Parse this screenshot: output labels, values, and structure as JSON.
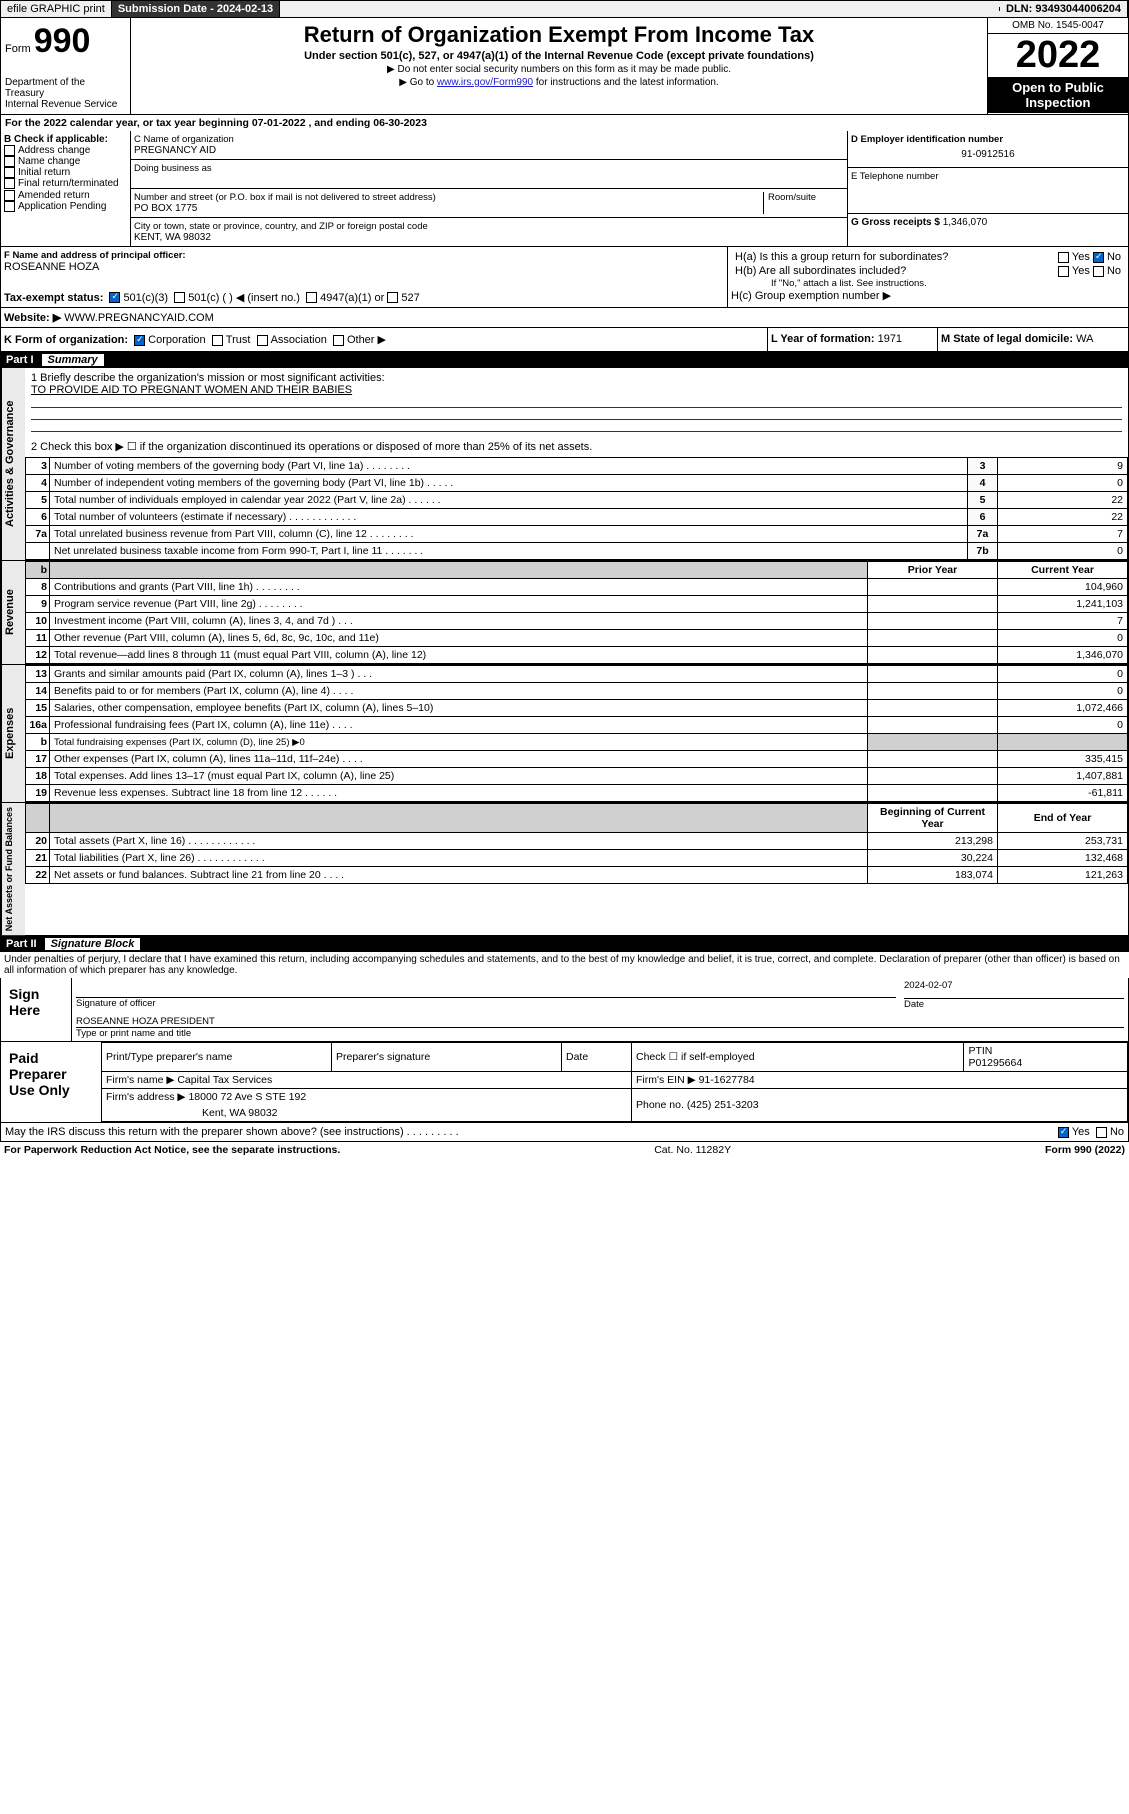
{
  "topbar": {
    "efile_label": "efile GRAPHIC print",
    "submission_label": "Submission Date - 2024-02-13",
    "dln_label": "DLN: 93493044006204"
  },
  "header": {
    "form_label": "Form",
    "form_number": "990",
    "dept": "Department of the Treasury",
    "irs": "Internal Revenue Service",
    "title": "Return of Organization Exempt From Income Tax",
    "subtitle": "Under section 501(c), 527, or 4947(a)(1) of the Internal Revenue Code (except private foundations)",
    "note1": "▶ Do not enter social security numbers on this form as it may be made public.",
    "note2_pre": "▶ Go to ",
    "note2_link": "www.irs.gov/Form990",
    "note2_post": " for instructions and the latest information.",
    "omb": "OMB No. 1545-0047",
    "year": "2022",
    "inspection": "Open to Public Inspection"
  },
  "lineA": "For the 2022 calendar year, or tax year beginning 07-01-2022   , and ending 06-30-2023",
  "boxB": {
    "label": "B Check if applicable:",
    "items": [
      "Address change",
      "Name change",
      "Initial return",
      "Final return/terminated",
      "Amended return",
      "Application Pending"
    ]
  },
  "boxC": {
    "label_name": "C Name of organization",
    "name": "PREGNANCY AID",
    "dba_label": "Doing business as",
    "addr_label": "Number and street (or P.O. box if mail is not delivered to street address)",
    "room_label": "Room/suite",
    "addr": "PO BOX 1775",
    "city_label": "City or town, state or province, country, and ZIP or foreign postal code",
    "city": "KENT, WA  98032"
  },
  "boxD": {
    "label": "D Employer identification number",
    "value": "91-0912516"
  },
  "boxE": {
    "label": "E Telephone number"
  },
  "boxG": {
    "label": "G Gross receipts $",
    "value": "1,346,070"
  },
  "boxF": {
    "label": "F  Name and address of principal officer:",
    "value": "ROSEANNE HOZA"
  },
  "boxH": {
    "ha": "H(a)  Is this a group return for subordinates?",
    "hb": "H(b)  Are all subordinates included?",
    "hb_note": "If \"No,\" attach a list. See instructions.",
    "hc": "H(c)  Group exemption number ▶",
    "yes": "Yes",
    "no": "No"
  },
  "boxI": {
    "label": "Tax-exempt status:",
    "opts": [
      "501(c)(3)",
      "501(c) (  ) ◀ (insert no.)",
      "4947(a)(1) or",
      "527"
    ]
  },
  "boxJ": {
    "label": "Website: ▶",
    "value": "WWW.PREGNANCYAID.COM"
  },
  "boxK": {
    "label": "K Form of organization:",
    "opts": [
      "Corporation",
      "Trust",
      "Association",
      "Other ▶"
    ]
  },
  "boxL": {
    "label": "L Year of formation:",
    "value": "1971"
  },
  "boxM": {
    "label": "M State of legal domicile:",
    "value": "WA"
  },
  "part1": {
    "num": "Part I",
    "title": "Summary"
  },
  "summary": {
    "line1_label": "1  Briefly describe the organization's mission or most significant activities:",
    "line1_text": "TO PROVIDE AID TO PREGNANT WOMEN AND THEIR BABIES",
    "line2": "2   Check this box ▶ ☐  if the organization discontinued its operations or disposed of more than 25% of its net assets.",
    "rows_gov": [
      {
        "n": "3",
        "label": "Number of voting members of the governing body (Part VI, line 1a)   .     .     .     .     .     .     .     .",
        "col": "3",
        "val": "9"
      },
      {
        "n": "4",
        "label": "Number of independent voting members of the governing body (Part VI, line 1b)  .     .     .     .     .",
        "col": "4",
        "val": "0"
      },
      {
        "n": "5",
        "label": "Total number of individuals employed in calendar year 2022 (Part V, line 2a)   .     .     .     .     .     .",
        "col": "5",
        "val": "22"
      },
      {
        "n": "6",
        "label": "Total number of volunteers (estimate if necessary)  .     .     .     .     .     .     .     .     .     .     .     .",
        "col": "6",
        "val": "22"
      },
      {
        "n": "7a",
        "label": "Total unrelated business revenue from Part VIII, column (C), line 12   .     .     .     .     .     .     .     .",
        "col": "7a",
        "val": "7"
      },
      {
        "n": "",
        "label": "Net unrelated business taxable income from Form 990-T, Part I, line 11   .     .     .     .     .     .     .",
        "col": "7b",
        "val": "0"
      }
    ],
    "col_prior": "Prior Year",
    "col_current": "Current Year",
    "rows_rev": [
      {
        "n": "8",
        "label": "Contributions and grants (Part VIII, line 1h)   .     .     .     .     .     .     .     .",
        "cur": "104,960"
      },
      {
        "n": "9",
        "label": "Program service revenue (Part VIII, line 2g)   .     .     .     .     .     .     .     .",
        "cur": "1,241,103"
      },
      {
        "n": "10",
        "label": "Investment income (Part VIII, column (A), lines 3, 4, and 7d )   .     .     .",
        "cur": "7"
      },
      {
        "n": "11",
        "label": "Other revenue (Part VIII, column (A), lines 5, 6d, 8c, 9c, 10c, and 11e)",
        "cur": "0"
      },
      {
        "n": "12",
        "label": "Total revenue—add lines 8 through 11 (must equal Part VIII, column (A), line 12)",
        "cur": "1,346,070"
      }
    ],
    "rows_exp": [
      {
        "n": "13",
        "label": "Grants and similar amounts paid (Part IX, column (A), lines 1–3 )  .     .     .",
        "cur": "0"
      },
      {
        "n": "14",
        "label": "Benefits paid to or for members (Part IX, column (A), line 4)  .     .     .     .",
        "cur": "0"
      },
      {
        "n": "15",
        "label": "Salaries, other compensation, employee benefits (Part IX, column (A), lines 5–10)",
        "cur": "1,072,466"
      },
      {
        "n": "16a",
        "label": "Professional fundraising fees (Part IX, column (A), line 11e)   .     .     .     .",
        "cur": "0"
      },
      {
        "n": "b",
        "label": "Total fundraising expenses (Part IX, column (D), line 25) ▶0",
        "cur": null,
        "grey": true
      },
      {
        "n": "17",
        "label": "Other expenses (Part IX, column (A), lines 11a–11d, 11f–24e)  .     .     .     .",
        "cur": "335,415"
      },
      {
        "n": "18",
        "label": "Total expenses. Add lines 13–17 (must equal Part IX, column (A), line 25)",
        "cur": "1,407,881"
      },
      {
        "n": "19",
        "label": "Revenue less expenses. Subtract line 18 from line 12  .     .     .     .     .     .",
        "cur": "-61,811"
      }
    ],
    "col_begin": "Beginning of Current Year",
    "col_end": "End of Year",
    "rows_net": [
      {
        "n": "20",
        "label": "Total assets (Part X, line 16)  .     .     .     .     .     .     .     .     .     .     .     .",
        "beg": "213,298",
        "end": "253,731"
      },
      {
        "n": "21",
        "label": "Total liabilities (Part X, line 26)  .     .     .     .     .     .     .     .     .     .     .     .",
        "beg": "30,224",
        "end": "132,468"
      },
      {
        "n": "22",
        "label": "Net assets or fund balances. Subtract line 21 from line 20  .     .     .     .",
        "beg": "183,074",
        "end": "121,263"
      }
    ]
  },
  "sidelabels": {
    "gov": "Activities & Governance",
    "rev": "Revenue",
    "exp": "Expenses",
    "net": "Net Assets or Fund Balances"
  },
  "part2": {
    "num": "Part II",
    "title": "Signature Block"
  },
  "penalties": "Under penalties of perjury, I declare that I have examined this return, including accompanying schedules and statements, and to the best of my knowledge and belief, it is true, correct, and complete. Declaration of preparer (other than officer) is based on all information of which preparer has any knowledge.",
  "sign": {
    "sign_here": "Sign Here",
    "sig_officer": "Signature of officer",
    "date_label": "Date",
    "date": "2024-02-07",
    "name_title": "ROSEANNE HOZA  PRESIDENT",
    "type_label": "Type or print name and title"
  },
  "paid": {
    "label": "Paid Preparer Use Only",
    "print_name": "Print/Type preparer's name",
    "prep_sig": "Preparer's signature",
    "date": "Date",
    "check_if": "Check ☐ if self-employed",
    "ptin_label": "PTIN",
    "ptin": "P01295664",
    "firm_name_label": "Firm's name     ▶",
    "firm_name": "Capital Tax Services",
    "firm_ein_label": "Firm's EIN ▶",
    "firm_ein": "91-1627784",
    "firm_addr_label": "Firm's address ▶",
    "firm_addr1": "18000 72 Ave S STE 192",
    "firm_addr2": "Kent, WA  98032",
    "phone_label": "Phone no.",
    "phone": "(425) 251-3203"
  },
  "may_irs": "May the IRS discuss this return with the preparer shown above? (see instructions)   .     .     .     .     .     .     .     .     .",
  "footer": {
    "left": "For Paperwork Reduction Act Notice, see the separate instructions.",
    "mid": "Cat. No. 11282Y",
    "right": "Form 990 (2022)"
  },
  "style": {
    "link_color": "#2020cc",
    "header_bg": "#000000",
    "vlabel_bg": "#eaeaea"
  }
}
